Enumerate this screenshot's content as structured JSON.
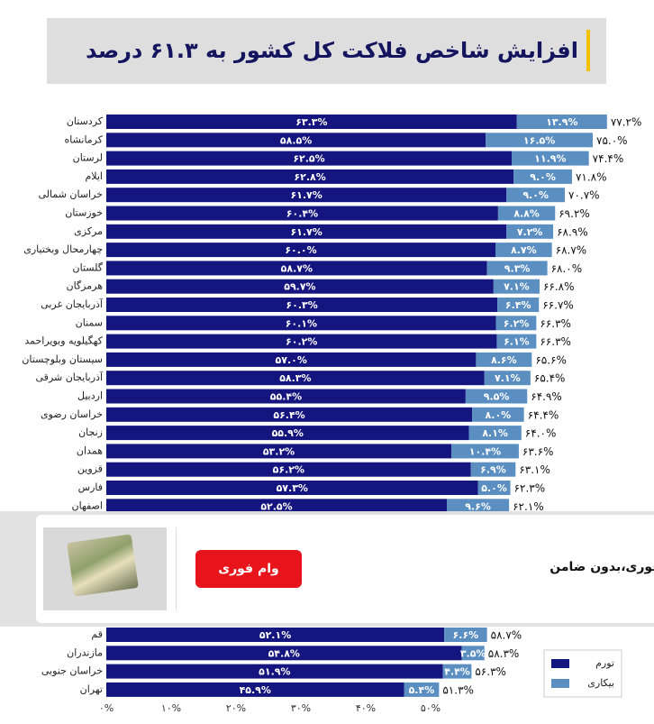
{
  "chart_data": {
    "type": "stacked-barh",
    "title": "افزایش شاخص فلاکت کل کشور به ۶۱.۳ درصد",
    "categories": [
      "کردستان",
      "کرمانشاه",
      "لرستان",
      "ایلام",
      "خراسان شمالی",
      "خوزستان",
      "مرکزی",
      "چهارمحال وبختیاری",
      "گلستان",
      "هرمزگان",
      "آذربایجان غربی",
      "سمنان",
      "کهگیلویه وبویراحمد",
      "سیستان وبلوچستان",
      "آذربایجان شرقی",
      "اردبیل",
      "خراسان رضوی",
      "زنجان",
      "همدان",
      "قزوین",
      "فارس",
      "اصفهان",
      "قم",
      "مازندران",
      "خراسان جنوبی",
      "تهران"
    ],
    "series": [
      {
        "name": "تورم",
        "color": "#15157f",
        "values": [
          63.3,
          58.5,
          62.5,
          62.8,
          61.7,
          60.4,
          61.7,
          60.0,
          58.7,
          59.7,
          60.3,
          60.1,
          60.2,
          57.0,
          58.3,
          55.4,
          56.4,
          55.9,
          53.2,
          56.2,
          57.3,
          52.5,
          52.1,
          54.8,
          51.9,
          45.9
        ],
        "value_labels": [
          "۶۳.۳%",
          "۵۸.۵%",
          "۶۲.۵%",
          "۶۲.۸%",
          "۶۱.۷%",
          "۶۰.۴%",
          "۶۱.۷%",
          "۶۰.۰%",
          "۵۸.۷%",
          "۵۹.۷%",
          "۶۰.۳%",
          "۶۰.۱%",
          "۶۰.۲%",
          "۵۷.۰%",
          "۵۸.۳%",
          "۵۵.۴%",
          "۵۶.۴%",
          "۵۵.۹%",
          "۵۳.۲%",
          "۵۶.۲%",
          "۵۷.۳%",
          "۵۲.۵%",
          "۵۲.۱%",
          "۵۴.۸%",
          "۵۱.۹%",
          "۴۵.۹%"
        ]
      },
      {
        "name": "بیکاری",
        "color": "#5b8fc2",
        "values": [
          13.9,
          16.5,
          11.9,
          9.0,
          9.0,
          8.8,
          7.2,
          8.7,
          9.3,
          7.1,
          6.4,
          6.2,
          6.1,
          8.6,
          7.1,
          9.5,
          8.0,
          8.1,
          10.4,
          6.9,
          5.0,
          9.6,
          6.6,
          3.5,
          4.4,
          5.4
        ],
        "value_labels": [
          "۱۳.۹%",
          "۱۶.۵%",
          "۱۱.۹%",
          "۹.۰%",
          "۹.۰%",
          "۸.۸%",
          "۷.۲%",
          "۸.۷%",
          "۹.۳%",
          "۷.۱%",
          "۶.۴%",
          "۶.۲%",
          "۶.۱%",
          "۸.۶%",
          "۷.۱%",
          "۹.۵%",
          "۸.۰%",
          "۸.۱%",
          "۱۰.۴%",
          "۶.۹%",
          "۵.۰%",
          "۹.۶%",
          "۶.۶%",
          "۳.۵%",
          "۴.۴%",
          "۵.۴%"
        ]
      }
    ],
    "totals": [
      77.2,
      75.0,
      74.4,
      71.8,
      70.7,
      69.2,
      68.9,
      68.7,
      68.0,
      66.8,
      66.7,
      66.3,
      66.3,
      65.6,
      65.4,
      64.9,
      64.4,
      64.0,
      63.6,
      63.1,
      62.3,
      62.1,
      58.7,
      58.3,
      56.3,
      51.3
    ],
    "total_labels": [
      "۷۷.۲%",
      "۷۵.۰%",
      "۷۴.۴%",
      "۷۱.۸%",
      "۷۰.۷%",
      "۶۹.۲%",
      "۶۸.۹%",
      "۶۸.۷%",
      "۶۸.۰%",
      "۶۶.۸%",
      "۶۶.۷%",
      "۶۶.۳%",
      "۶۶.۳%",
      "۶۵.۶%",
      "۶۵.۴%",
      "۶۴.۹%",
      "۶۴.۴%",
      "۶۴.۰%",
      "۶۳.۶%",
      "۶۳.۱%",
      "۶۲.۳%",
      "۶۲.۱%",
      "۵۸.۷%",
      "۵۸.۳%",
      "۵۶.۳%",
      "۵۱.۳%"
    ],
    "xlim": [
      0,
      80
    ],
    "xticks": [
      {
        "value": 0,
        "label": "۰%"
      },
      {
        "value": 10,
        "label": "۱۰%"
      },
      {
        "value": 20,
        "label": "۲۰%"
      },
      {
        "value": 30,
        "label": "۳۰%"
      },
      {
        "value": 40,
        "label": "۴۰%"
      },
      {
        "value": 50,
        "label": "۵۰%"
      }
    ],
    "legend": "lower right"
  },
  "ad": {
    "button": "وام فوری",
    "text": "وام فوری،بدون ضامن"
  }
}
